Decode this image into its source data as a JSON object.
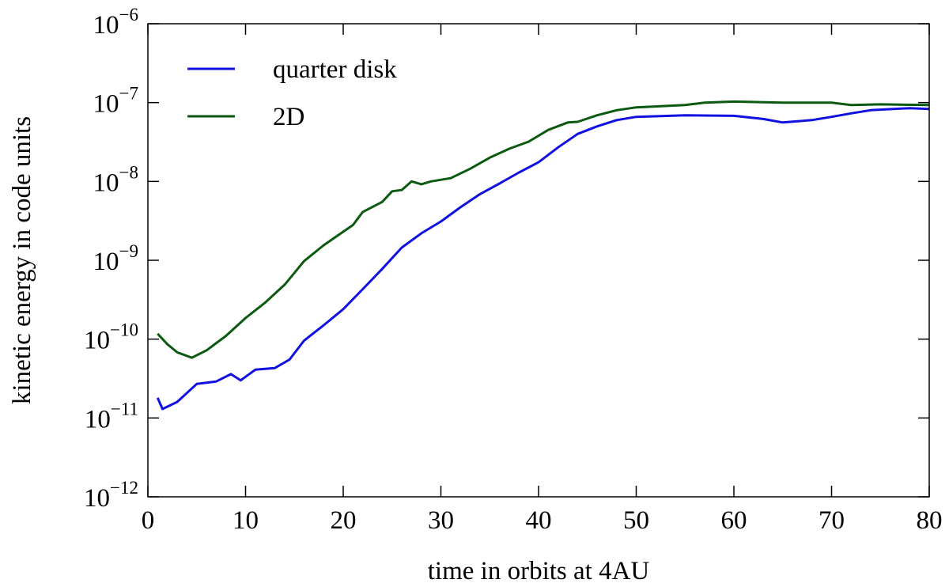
{
  "chart_data": {
    "type": "line",
    "xlabel": "time in orbits at 4AU",
    "ylabel": "kinetic energy in code units",
    "xlim": [
      0,
      80
    ],
    "xticks": [
      0,
      10,
      20,
      30,
      40,
      50,
      60,
      70,
      80
    ],
    "ylim": [
      1e-12,
      1e-06
    ],
    "yscale": "log",
    "yticks": [
      {
        "value": 1e-12,
        "label": "10",
        "exponent": "−12"
      },
      {
        "value": 1e-11,
        "label": "10",
        "exponent": "−11"
      },
      {
        "value": 1e-10,
        "label": "10",
        "exponent": "−10"
      },
      {
        "value": 1e-09,
        "label": "10",
        "exponent": "−9"
      },
      {
        "value": 1e-08,
        "label": "10",
        "exponent": "−8"
      },
      {
        "value": 1e-07,
        "label": "10",
        "exponent": "−7"
      },
      {
        "value": 1e-06,
        "label": "10",
        "exponent": "−6"
      }
    ],
    "legend": "upper left",
    "series": [
      {
        "name": "quarter disk",
        "color": "#1010e0",
        "x": [
          1,
          1.5,
          3,
          5,
          7,
          8.5,
          9.5,
          11,
          13,
          14.5,
          16,
          18,
          20,
          22,
          24,
          26,
          28,
          30,
          32,
          34,
          36,
          38,
          40,
          42,
          44,
          46,
          48,
          50,
          55,
          60,
          63,
          65,
          68,
          70,
          72,
          74,
          78,
          80
        ],
        "values": [
          1.8e-11,
          1.3e-11,
          1.6e-11,
          2.7e-11,
          2.9e-11,
          3.6e-11,
          3e-11,
          4.1e-11,
          4.3e-11,
          5.5e-11,
          9.6e-11,
          1.5e-10,
          2.4e-10,
          4.3e-10,
          7.8e-10,
          1.45e-09,
          2.2e-09,
          3.1e-09,
          4.7e-09,
          6.9e-09,
          9.4e-09,
          1.3e-08,
          1.75e-08,
          2.7e-08,
          4e-08,
          5e-08,
          6e-08,
          6.6e-08,
          6.9e-08,
          6.8e-08,
          6.2e-08,
          5.6e-08,
          6e-08,
          6.6e-08,
          7.3e-08,
          8e-08,
          8.5e-08,
          8.3e-08
        ]
      },
      {
        "name": "2D",
        "color": "#0b5a10",
        "x": [
          1,
          2,
          3,
          4.5,
          6,
          8,
          10,
          12,
          14,
          16,
          18,
          20,
          21,
          22,
          24,
          25,
          26,
          27,
          28,
          29,
          31,
          33,
          35,
          37,
          39,
          41,
          43,
          44,
          46,
          48,
          50,
          55,
          57,
          60,
          65,
          70,
          72,
          75,
          80
        ],
        "values": [
          1.17e-10,
          8.6e-11,
          6.8e-11,
          5.8e-11,
          7.2e-11,
          1.1e-10,
          1.85e-10,
          2.9e-10,
          4.9e-10,
          9.8e-10,
          1.55e-09,
          2.3e-09,
          2.8e-09,
          4.1e-09,
          5.5e-09,
          7.5e-09,
          7.8e-09,
          1e-08,
          9.2e-09,
          1e-08,
          1.1e-08,
          1.45e-08,
          2e-08,
          2.6e-08,
          3.2e-08,
          4.5e-08,
          5.6e-08,
          5.7e-08,
          6.9e-08,
          8e-08,
          8.7e-08,
          9.3e-08,
          1e-07,
          1.03e-07,
          1e-07,
          1e-07,
          9.3e-08,
          9.5e-08,
          9.3e-08
        ]
      }
    ]
  }
}
